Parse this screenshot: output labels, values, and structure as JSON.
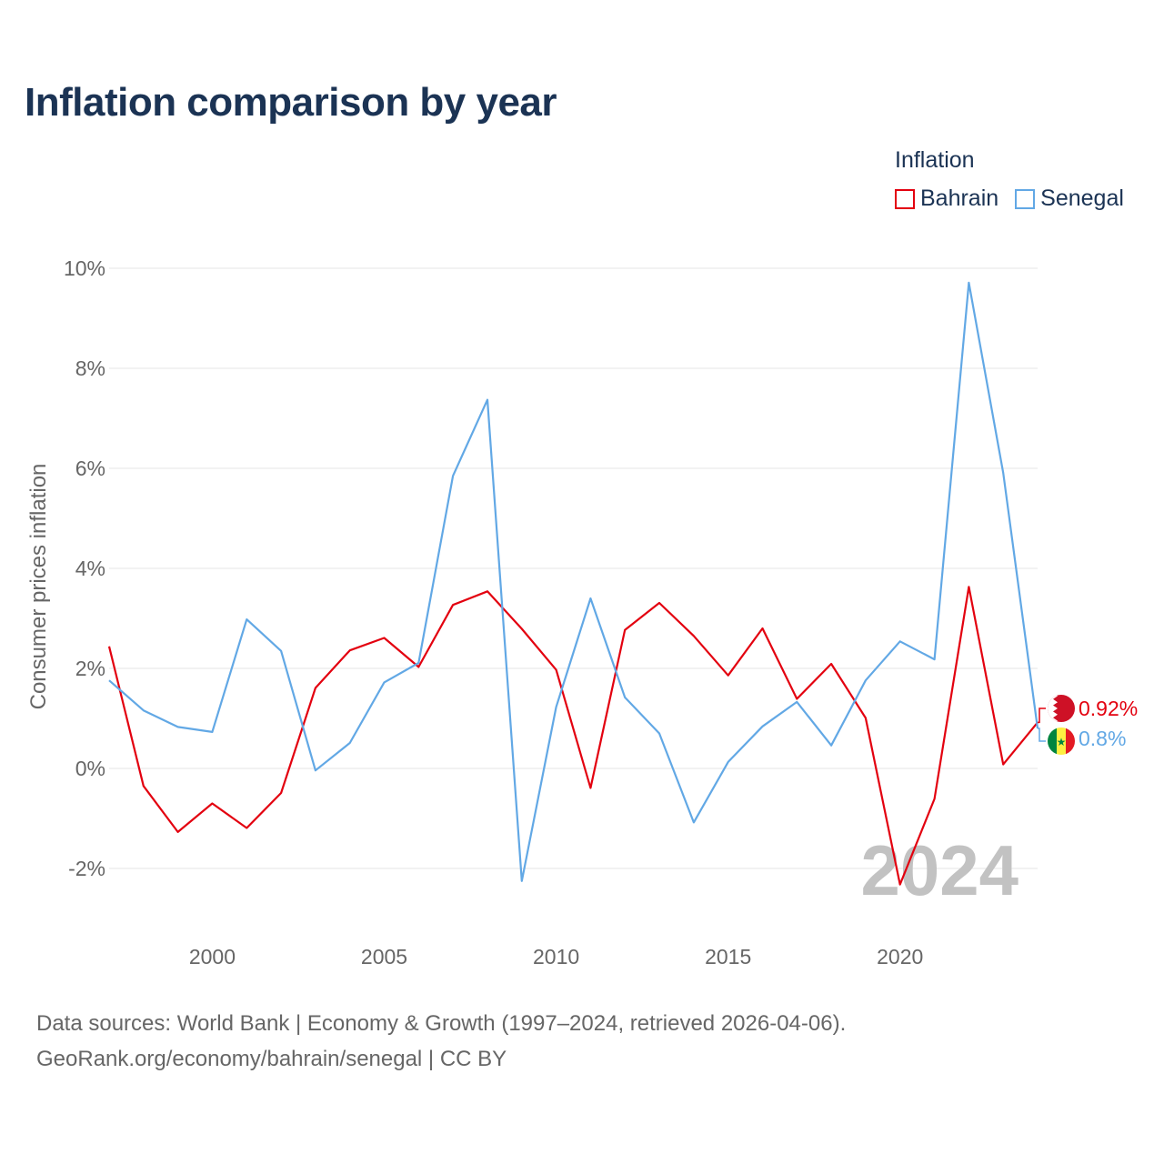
{
  "title": "Inflation comparison by year",
  "legend": {
    "title": "Inflation",
    "items": [
      {
        "label": "Bahrain",
        "color": "#e3000f"
      },
      {
        "label": "Senegal",
        "color": "#62a8e5"
      }
    ]
  },
  "year_watermark": "2024",
  "end_labels": {
    "bahrain": "0.92%",
    "senegal": "0.8%"
  },
  "footer": {
    "line1": "Data sources: World Bank | Economy & Growth (1997–2024, retrieved 2026-04-06).",
    "line2": "GeoRank.org/economy/bahrain/senegal | CC BY"
  },
  "chart_data": {
    "type": "line",
    "title": "Inflation comparison by year",
    "xlabel": "",
    "ylabel": "Consumer prices inflation",
    "xlim": [
      1997,
      2024
    ],
    "ylim": [
      -2,
      10
    ],
    "yticks": [
      {
        "value": -2,
        "label": "-2%"
      },
      {
        "value": 0,
        "label": "0%"
      },
      {
        "value": 2,
        "label": "2%"
      },
      {
        "value": 4,
        "label": "4%"
      },
      {
        "value": 6,
        "label": "6%"
      },
      {
        "value": 8,
        "label": "8%"
      },
      {
        "value": 10,
        "label": "10%"
      }
    ],
    "xticks": [
      {
        "value": 2000,
        "label": "2000"
      },
      {
        "value": 2005,
        "label": "2005"
      },
      {
        "value": 2010,
        "label": "2010"
      },
      {
        "value": 2015,
        "label": "2015"
      },
      {
        "value": 2020,
        "label": "2020"
      }
    ],
    "x": [
      1997,
      1998,
      1999,
      2000,
      2001,
      2002,
      2003,
      2004,
      2005,
      2006,
      2007,
      2008,
      2009,
      2010,
      2011,
      2012,
      2013,
      2014,
      2015,
      2016,
      2017,
      2018,
      2019,
      2020,
      2021,
      2022,
      2023,
      2024
    ],
    "series": [
      {
        "name": "Bahrain",
        "color": "#e3000f",
        "values": [
          2.44,
          -0.35,
          -1.27,
          -0.7,
          -1.19,
          -0.49,
          1.61,
          2.36,
          2.61,
          2.03,
          3.27,
          3.54,
          2.79,
          1.97,
          -0.39,
          2.77,
          3.31,
          2.65,
          1.86,
          2.8,
          1.39,
          2.09,
          1.01,
          -2.32,
          -0.61,
          3.63,
          0.08,
          0.92
        ]
      },
      {
        "name": "Senegal",
        "color": "#62a8e5",
        "values": [
          1.76,
          1.16,
          0.83,
          0.73,
          2.98,
          2.35,
          -0.04,
          0.51,
          1.72,
          2.11,
          5.85,
          7.37,
          -2.25,
          1.23,
          3.4,
          1.42,
          0.7,
          -1.08,
          0.13,
          0.84,
          1.33,
          0.46,
          1.76,
          2.54,
          2.18,
          9.71,
          5.91,
          0.8
        ]
      }
    ]
  }
}
